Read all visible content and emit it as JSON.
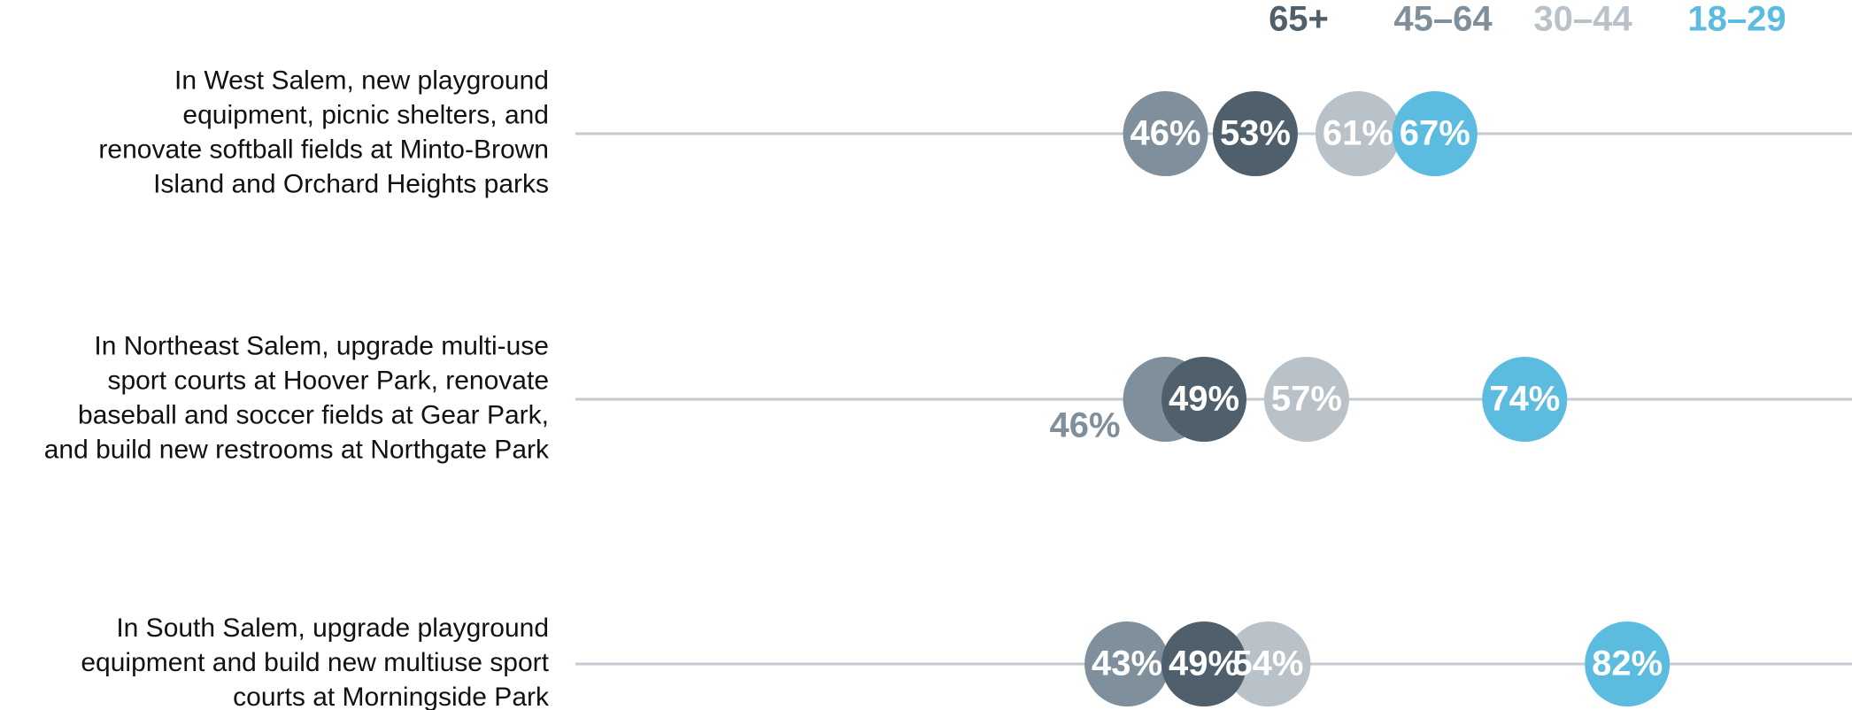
{
  "chart_data": {
    "type": "dot",
    "categories": [
      [
        "In West Salem, new playground",
        "equipment, picnic shelters, and",
        "renovate softball fields at Minto-Brown",
        "Island and Orchard Heights parks"
      ],
      [
        "In Northeast Salem, upgrade multi-use",
        "sport courts at Hoover Park, renovate",
        "baseball and soccer fields at Gear Park,",
        "and build new restrooms at Northgate Park"
      ],
      [
        "In South Salem, upgrade playground",
        "equipment and build new multiuse sport",
        "courts at Morningside Park"
      ]
    ],
    "series": [
      {
        "name": "65+",
        "color": "#4f5f6b",
        "values": [
          53,
          49,
          49
        ],
        "value_labels": [
          "53%",
          "49%",
          "49%"
        ]
      },
      {
        "name": "45–64",
        "color": "#7f909c",
        "values": [
          46,
          46,
          43
        ],
        "value_labels": [
          "46%",
          "46%",
          "43%"
        ]
      },
      {
        "name": "30–44",
        "color": "#b9c2c8",
        "values": [
          61,
          57,
          54
        ],
        "value_labels": [
          "61%",
          "57%",
          "54%"
        ]
      },
      {
        "name": "18–29",
        "color": "#5bbcdf",
        "values": [
          67,
          74,
          82
        ],
        "value_labels": [
          "67%",
          "74%",
          "82%"
        ]
      }
    ],
    "xlim": [
      0,
      100
    ]
  }
}
